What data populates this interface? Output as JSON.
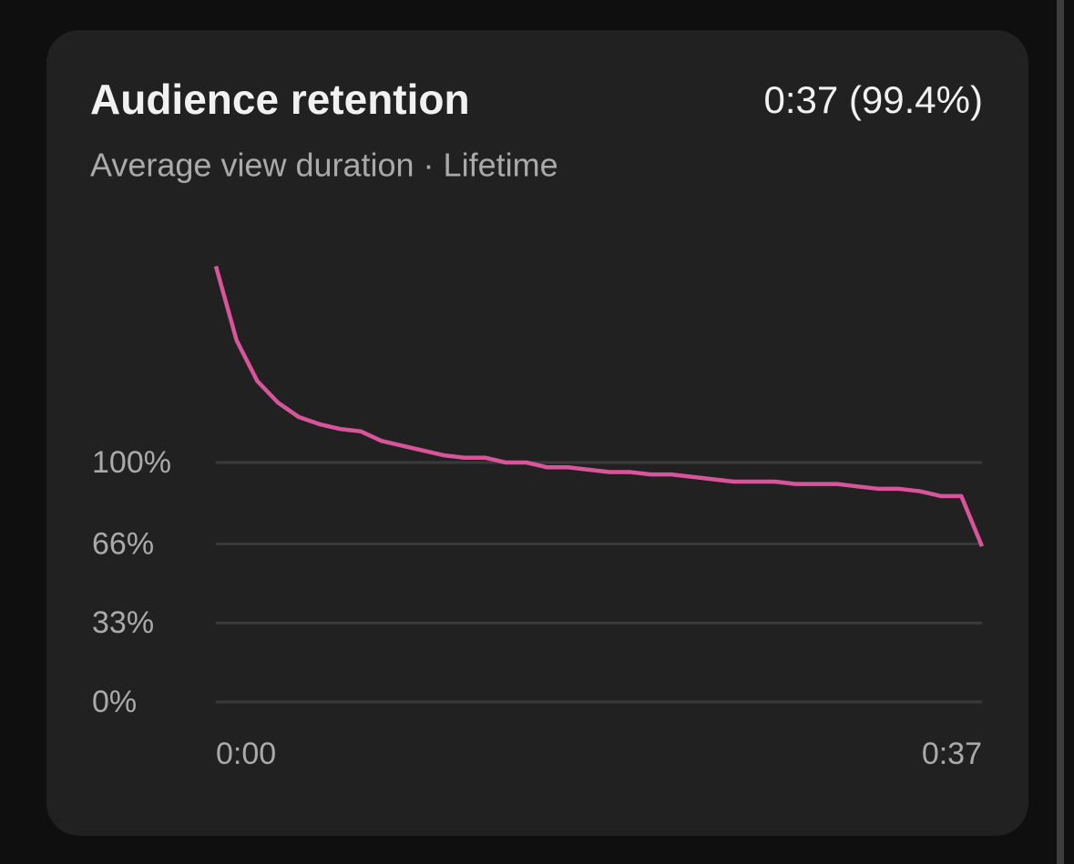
{
  "header": {
    "title": "Audience retention",
    "value": "0:37 (99.4%)",
    "subtitle": "Average view duration · Lifetime"
  },
  "chart_data": {
    "type": "line",
    "x": [
      0,
      1,
      2,
      3,
      4,
      5,
      6,
      7,
      8,
      9,
      10,
      11,
      12,
      13,
      14,
      15,
      16,
      17,
      18,
      19,
      20,
      21,
      22,
      23,
      24,
      25,
      26,
      27,
      28,
      29,
      30,
      31,
      32,
      33,
      34,
      35,
      36,
      37
    ],
    "series": [
      {
        "name": "Audience retention",
        "color": "#d9559b",
        "values": [
          182,
          151,
          134,
          125,
          119,
          116,
          114,
          113,
          109,
          107,
          105,
          103,
          102,
          102,
          100,
          100,
          98,
          98,
          97,
          96,
          96,
          95,
          95,
          94,
          93,
          92,
          92,
          92,
          91,
          91,
          91,
          90,
          89,
          89,
          88,
          86,
          86,
          65
        ]
      }
    ],
    "xlim": [
      0,
      37
    ],
    "xticks": [
      {
        "value": 0,
        "label": "0:00"
      },
      {
        "value": 37,
        "label": "0:37"
      }
    ],
    "ylim": [
      0,
      200
    ],
    "yticks": [
      {
        "value": 0,
        "label": "0%"
      },
      {
        "value": 33,
        "label": "33%"
      },
      {
        "value": 66,
        "label": "66%"
      },
      {
        "value": 100,
        "label": "100%"
      }
    ],
    "grid": true
  }
}
